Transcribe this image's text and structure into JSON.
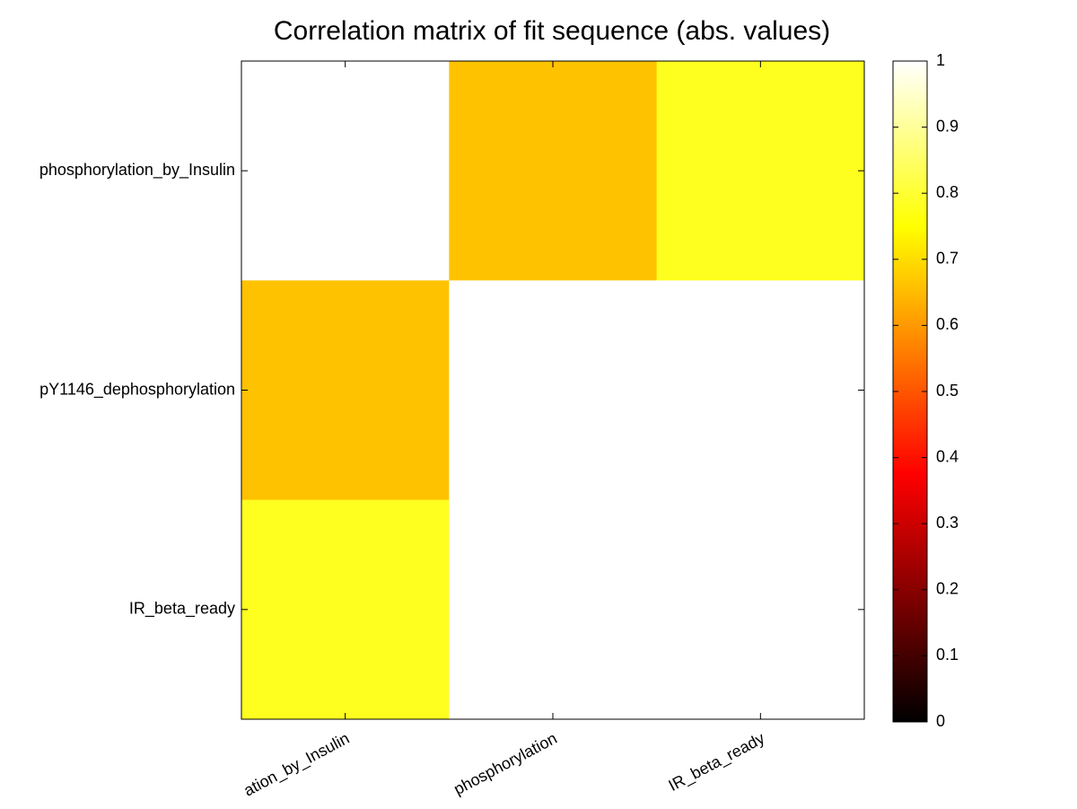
{
  "chart_data": {
    "type": "heatmap",
    "title": "Correlation matrix of fit sequence (abs. values)",
    "x_categories": [
      "ation_by_Insulin",
      "phosphorylation",
      "IR_beta_ready"
    ],
    "y_categories": [
      "phosphorylation_by_Insulin",
      "pY1146_dephosphorylation",
      "IR_beta_ready"
    ],
    "values": [
      [
        1,
        0.66,
        0.78
      ],
      [
        0.66,
        1,
        1
      ],
      [
        0.78,
        1,
        1
      ]
    ],
    "colormap": "hot",
    "clim": [
      0,
      1
    ],
    "cticks": [
      0,
      0.1,
      0.2,
      0.3,
      0.4,
      0.5,
      0.6,
      0.7,
      0.8,
      0.9,
      1
    ]
  }
}
